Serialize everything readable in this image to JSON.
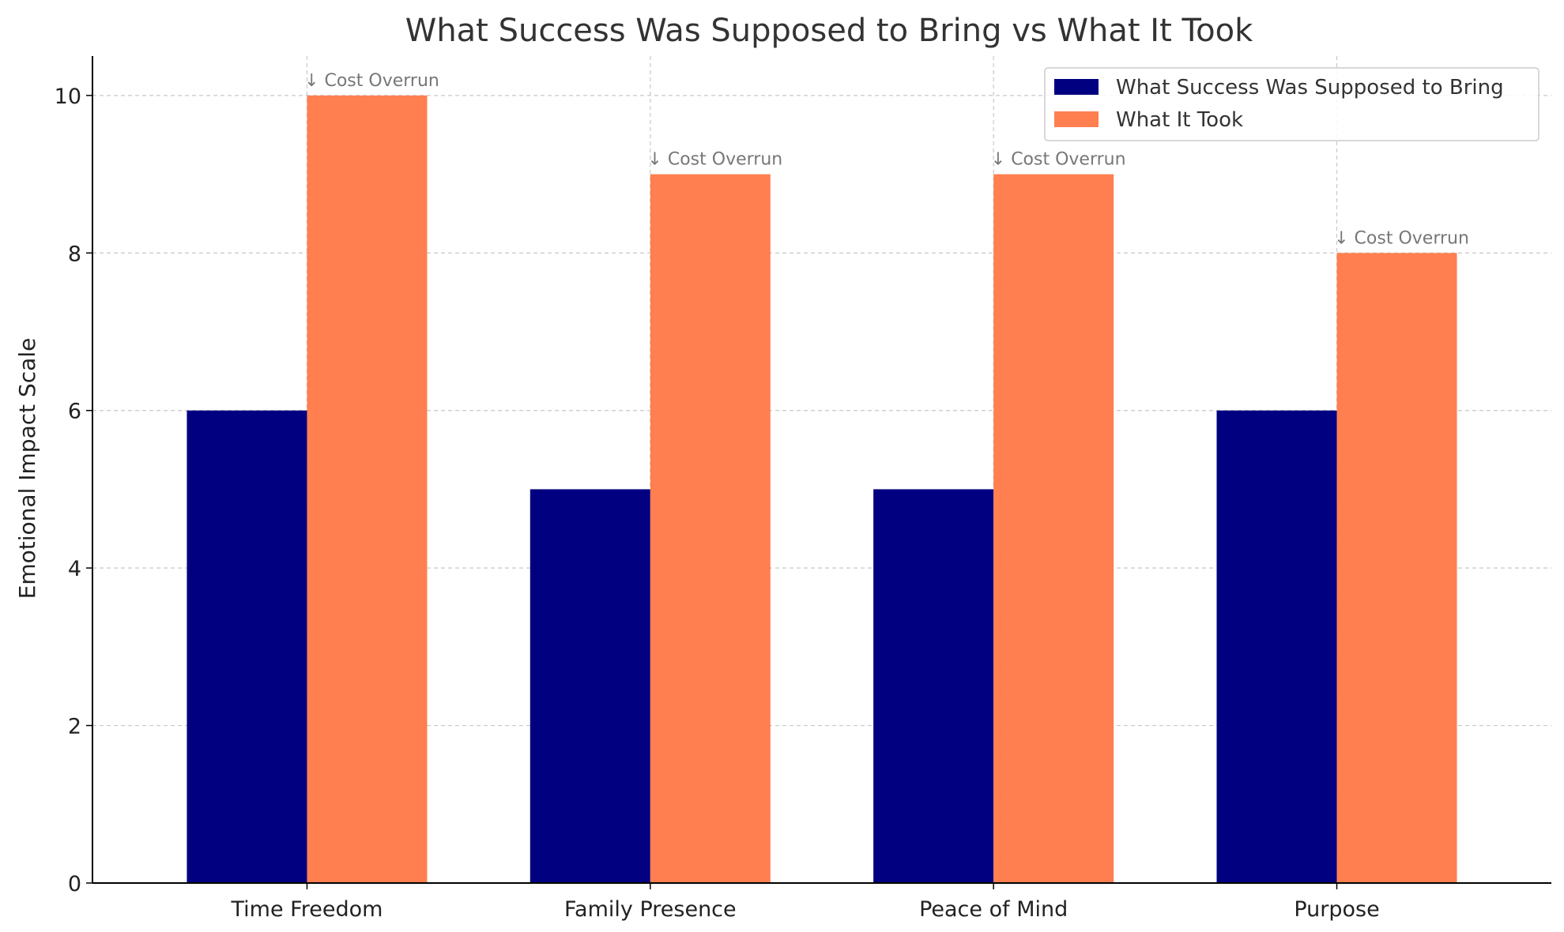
{
  "chart_data": {
    "type": "bar",
    "title": "What Success Was Supposed to Bring vs What It Took",
    "xlabel": "",
    "ylabel": "Emotional Impact Scale",
    "categories": [
      "Time Freedom",
      "Family Presence",
      "Peace of Mind",
      "Purpose"
    ],
    "series": [
      {
        "name": "What Success Was Supposed to Bring",
        "values": [
          6,
          5,
          5,
          6
        ],
        "color": "#000080"
      },
      {
        "name": "What It Took",
        "values": [
          10,
          9,
          9,
          8
        ],
        "color": "#ff7f50"
      }
    ],
    "ylim": [
      0,
      10.5
    ],
    "yticks": [
      0,
      2,
      4,
      6,
      8,
      10
    ],
    "grid": true,
    "legend_position": "top-right",
    "annotations": [
      {
        "text": "↓ Cost Overrun",
        "category": "Time Freedom"
      },
      {
        "text": "↓ Cost Overrun",
        "category": "Family Presence"
      },
      {
        "text": "↓ Cost Overrun",
        "category": "Peace of Mind"
      },
      {
        "text": "↓ Cost Overrun",
        "category": "Purpose"
      }
    ]
  }
}
